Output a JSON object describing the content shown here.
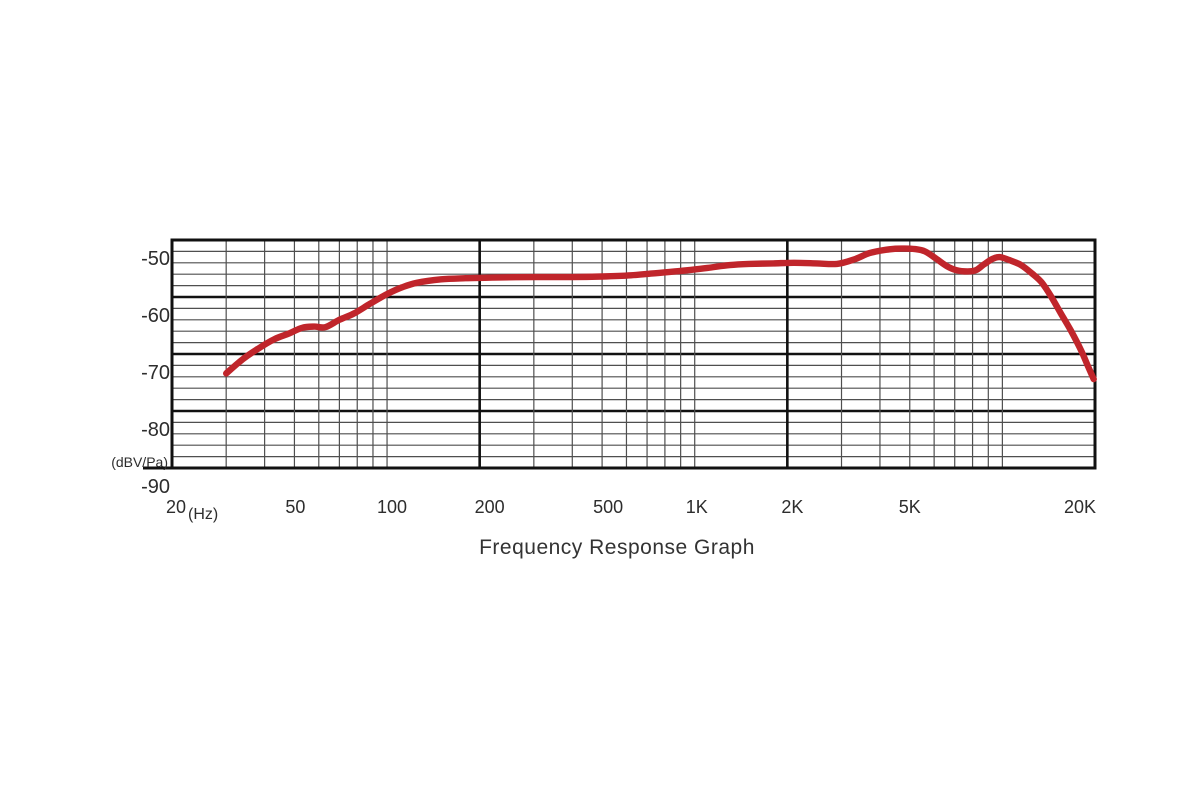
{
  "chart_data": {
    "type": "line",
    "title": "Frequency Response Graph",
    "xlabel": "(Hz)",
    "ylabel": "(dBV/Pa)",
    "x_scale": "log",
    "x_range_hz": [
      20,
      20000
    ],
    "y_axis_top_db": -46,
    "y_axis_bottom_db": -86,
    "y_major_step_db": 10,
    "y_minor_per_major": 5,
    "grid": true,
    "legend": "none",
    "colors": {
      "curve": "#c0252b",
      "grid_major": "#111111",
      "grid_minor": "#4f4f4f",
      "text": "#2d2d2d"
    },
    "y_ticks": [
      {
        "label": "-50",
        "db": -50
      },
      {
        "label": "-60",
        "db": -60
      },
      {
        "label": "-70",
        "db": -70
      },
      {
        "label": "-80",
        "db": -80
      },
      {
        "label": "-90",
        "db": -90
      }
    ],
    "x_ticks": [
      {
        "label": "20",
        "hz": 20
      },
      {
        "label": "50",
        "hz": 50
      },
      {
        "label": "100",
        "hz": 100
      },
      {
        "label": "200",
        "hz": 200
      },
      {
        "label": "500",
        "hz": 500
      },
      {
        "label": "1K",
        "hz": 1000
      },
      {
        "label": "2K",
        "hz": 2000
      },
      {
        "label": "5K",
        "hz": 5000
      },
      {
        "label": "20K",
        "hz": 20000
      }
    ],
    "x_minor_gridlines_hz": [
      30,
      40,
      50,
      60,
      70,
      80,
      90,
      100,
      300,
      400,
      500,
      600,
      700,
      800,
      900,
      1000,
      3000,
      4000,
      5000,
      6000,
      7000,
      8000,
      9000,
      10000
    ],
    "series": [
      {
        "name": "frequency-response",
        "points_hz_db": [
          [
            30,
            -69.4
          ],
          [
            34,
            -66.9
          ],
          [
            38,
            -65.1
          ],
          [
            43,
            -63.4
          ],
          [
            48,
            -62.4
          ],
          [
            53,
            -61.4
          ],
          [
            58,
            -61.2
          ],
          [
            63,
            -61.3
          ],
          [
            70,
            -60.0
          ],
          [
            78,
            -58.9
          ],
          [
            88,
            -57.2
          ],
          [
            100,
            -55.5
          ],
          [
            112,
            -54.3
          ],
          [
            125,
            -53.5
          ],
          [
            150,
            -52.9
          ],
          [
            180,
            -52.7
          ],
          [
            220,
            -52.6
          ],
          [
            300,
            -52.5
          ],
          [
            400,
            -52.5
          ],
          [
            500,
            -52.4
          ],
          [
            620,
            -52.2
          ],
          [
            720,
            -51.9
          ],
          [
            830,
            -51.6
          ],
          [
            950,
            -51.3
          ],
          [
            1100,
            -50.9
          ],
          [
            1300,
            -50.4
          ],
          [
            1500,
            -50.2
          ],
          [
            1800,
            -50.1
          ],
          [
            2100,
            -50.0
          ],
          [
            2500,
            -50.1
          ],
          [
            2900,
            -50.2
          ],
          [
            3300,
            -49.4
          ],
          [
            3700,
            -48.3
          ],
          [
            4200,
            -47.7
          ],
          [
            4700,
            -47.5
          ],
          [
            5200,
            -47.6
          ],
          [
            5600,
            -48.0
          ],
          [
            6100,
            -49.3
          ],
          [
            6600,
            -50.6
          ],
          [
            7100,
            -51.3
          ],
          [
            7700,
            -51.5
          ],
          [
            8200,
            -51.3
          ],
          [
            8700,
            -50.3
          ],
          [
            9300,
            -49.3
          ],
          [
            9800,
            -49.0
          ],
          [
            10500,
            -49.5
          ],
          [
            11500,
            -50.4
          ],
          [
            12500,
            -51.9
          ],
          [
            13400,
            -53.4
          ],
          [
            14400,
            -55.9
          ],
          [
            15500,
            -58.9
          ],
          [
            16700,
            -61.9
          ],
          [
            18000,
            -65.3
          ],
          [
            19000,
            -68.2
          ],
          [
            19800,
            -70.4
          ]
        ]
      }
    ]
  }
}
